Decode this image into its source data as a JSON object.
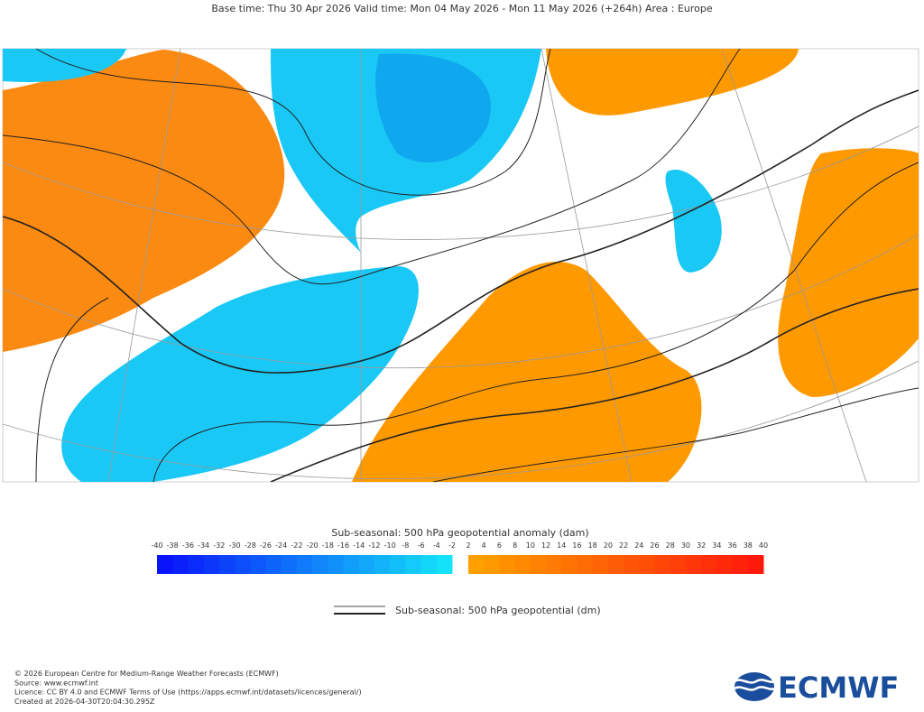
{
  "header": {
    "title": "Base time: Thu 30 Apr 2026 Valid time: Mon 04 May 2026 - Mon 11 May 2026 (+264h) Area : Europe"
  },
  "colorbar": {
    "title": "Sub-seasonal: 500 hPa geopotential anomaly (dam)",
    "negative_ticks": [
      "-40",
      "-38",
      "-36",
      "-34",
      "-32",
      "-30",
      "-28",
      "-26",
      "-24",
      "-22",
      "-20",
      "-18",
      "-16",
      "-14",
      "-12",
      "-10",
      "-8",
      "-6",
      "-4",
      "-2"
    ],
    "positive_ticks": [
      "2",
      "4",
      "6",
      "8",
      "10",
      "12",
      "14",
      "16",
      "18",
      "20",
      "22",
      "24",
      "26",
      "28",
      "30",
      "32",
      "34",
      "36",
      "38",
      "40"
    ]
  },
  "legend": {
    "label": "Sub-seasonal: 500 hPa geopotential (dm)"
  },
  "footer": {
    "lines": [
      "© 2026 European Centre for Medium-Range Weather Forecasts (ECMWF)",
      "Source: www.ecmwf.int",
      "Licence: CC BY 4.0 and ECMWF Terms of Use (https://apps.ecmwf.int/datasets/licences/general/)",
      "Created at 2026-04-30T20:04:30.295Z"
    ]
  },
  "logo": {
    "text": "ECMWF"
  }
}
